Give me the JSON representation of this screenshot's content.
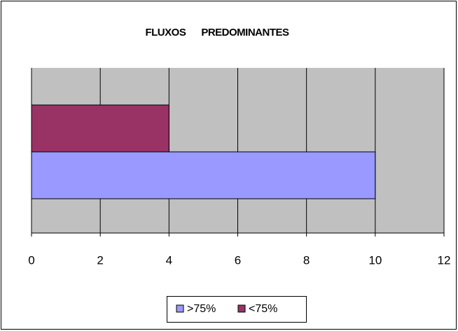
{
  "chart_data": {
    "type": "hbar",
    "title": "FLUXOS      PREDOMINANTES",
    "categories": [
      null
    ],
    "series": [
      {
        "name": ">75%",
        "color": "#9999ff",
        "values": [
          10
        ]
      },
      {
        "name": "<75%",
        "color": "#993366",
        "values": [
          4
        ]
      }
    ],
    "xlim": [
      0,
      12
    ],
    "xticks": [
      0,
      2,
      4,
      6,
      8,
      10,
      12
    ],
    "grid": true,
    "legend": "bottom"
  }
}
